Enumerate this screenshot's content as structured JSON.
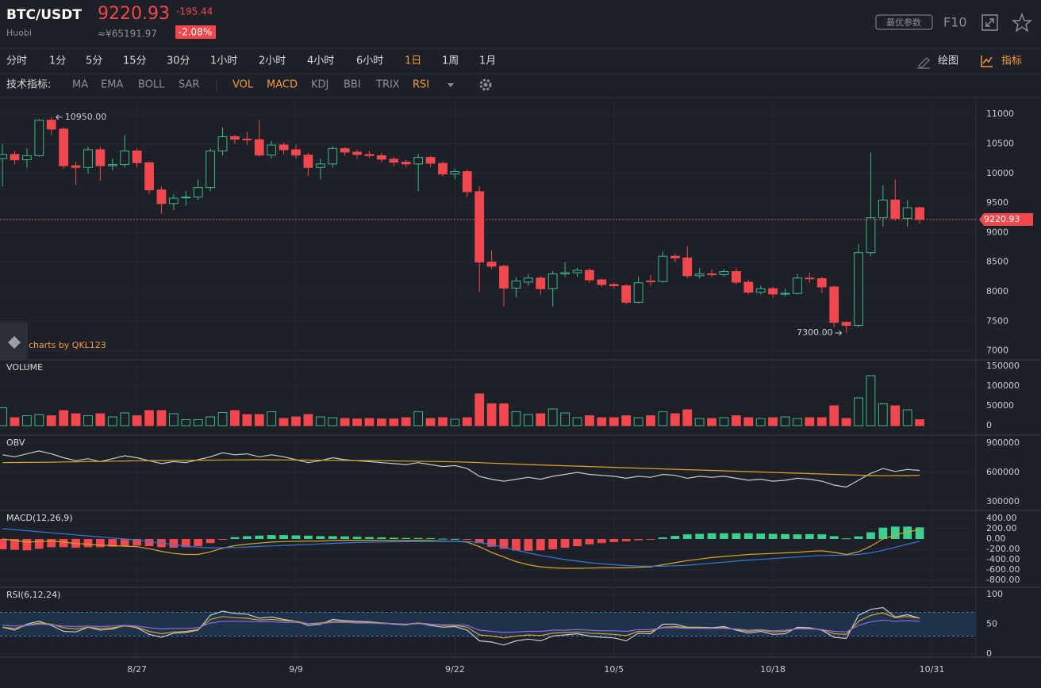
{
  "header": {
    "symbol": "BTC/USDT",
    "exchange": "Huobi",
    "price": "9220.93",
    "change": "-195.44",
    "price_cny": "≈¥65191.97",
    "change_pct": "-2.08%",
    "params_button": "最优参数",
    "f10": "F10"
  },
  "periods": [
    "分时",
    "1分",
    "5分",
    "15分",
    "30分",
    "1小时",
    "2小时",
    "4小时",
    "6小时",
    "1日",
    "1周",
    "1月"
  ],
  "active_period": 9,
  "tools": [
    "绘图",
    "指标"
  ],
  "indicators": {
    "label": "技术指标:",
    "overlays": [
      "MA",
      "EMA",
      "BOLL",
      "SAR"
    ],
    "subcharts": [
      "VOL",
      "MACD",
      "KDJ",
      "BBI",
      "TRIX",
      "RSI"
    ],
    "active_subcharts": [
      0,
      1,
      5
    ]
  },
  "watermark": "charts by QKL123",
  "chart_data": [
    {
      "type": "candlestick",
      "up_color": "#3bb78a",
      "down_color": "#f0484e",
      "open": [
        10250,
        10320,
        10230,
        10300,
        10900,
        10750,
        10130,
        10100,
        10400,
        10130,
        10150,
        10380,
        10180,
        9720,
        9490,
        9590,
        9600,
        9760,
        10380,
        10620,
        10580,
        10570,
        10310,
        10480,
        10400,
        10310,
        10100,
        10160,
        10420,
        10360,
        10320,
        10300,
        10240,
        10190,
        10160,
        10270,
        10170,
        9990,
        10030,
        9690,
        8500,
        8430,
        8060,
        8160,
        8230,
        8050,
        8300,
        8320,
        8360,
        8200,
        8120,
        8100,
        7820,
        8180,
        8170,
        8600,
        8570,
        8270,
        8300,
        8290,
        8340,
        8160,
        7990,
        8050,
        7960,
        7970,
        8230,
        8220,
        8080,
        7480,
        7430,
        8660,
        9250,
        9550,
        9240,
        9420
      ],
      "high": [
        10500,
        10380,
        10420,
        10920,
        10950,
        10780,
        10200,
        10450,
        10450,
        10250,
        10650,
        10420,
        10200,
        9780,
        9650,
        9700,
        9900,
        10420,
        10780,
        10650,
        10700,
        10900,
        10550,
        10520,
        10480,
        10350,
        10250,
        10460,
        10440,
        10400,
        10380,
        10350,
        10280,
        10230,
        10330,
        10300,
        10200,
        10080,
        10060,
        9780,
        8700,
        8450,
        8250,
        8300,
        8260,
        8350,
        8500,
        8400,
        8400,
        8220,
        8150,
        8120,
        8250,
        8280,
        8680,
        8650,
        8770,
        8400,
        8370,
        8380,
        8400,
        8200,
        8100,
        8080,
        8050,
        8300,
        8320,
        8250,
        8100,
        7500,
        8800,
        10350,
        9800,
        9900,
        9550,
        9440
      ],
      "low": [
        9780,
        10150,
        10100,
        10280,
        10650,
        10080,
        9800,
        10000,
        9880,
        10050,
        10100,
        10100,
        9650,
        9320,
        9380,
        9450,
        9550,
        9700,
        10300,
        10500,
        10480,
        10280,
        10250,
        10320,
        10250,
        9950,
        9900,
        10100,
        10300,
        10250,
        10260,
        10180,
        10120,
        10100,
        9700,
        10100,
        9950,
        9900,
        9600,
        8000,
        8380,
        7750,
        7900,
        8100,
        7950,
        7750,
        8250,
        8250,
        8150,
        8080,
        8050,
        7780,
        7800,
        8100,
        8150,
        8500,
        8230,
        8220,
        8250,
        8250,
        8120,
        7950,
        7950,
        7900,
        7920,
        7950,
        8150,
        7980,
        7400,
        7300,
        7400,
        8600,
        9100,
        9200,
        9100,
        9150
      ],
      "close": [
        10320,
        10230,
        10300,
        10900,
        10750,
        10130,
        10100,
        10400,
        10130,
        10150,
        10380,
        10180,
        9720,
        9490,
        9580,
        9600,
        9760,
        10380,
        10620,
        10580,
        10570,
        10310,
        10480,
        10400,
        10310,
        10100,
        10160,
        10420,
        10360,
        10320,
        10300,
        10240,
        10190,
        10160,
        10270,
        10170,
        9990,
        10030,
        9690,
        8500,
        8430,
        8060,
        8180,
        8230,
        8050,
        8300,
        8320,
        8360,
        8200,
        8120,
        8100,
        7820,
        8150,
        8170,
        8600,
        8570,
        8270,
        8300,
        8290,
        8340,
        8160,
        7990,
        8050,
        7960,
        7970,
        8230,
        8220,
        8080,
        7480,
        7430,
        8660,
        9250,
        9550,
        9240,
        9420,
        9220.93
      ],
      "last_price": 9220.93,
      "annotations": [
        {
          "x": 4,
          "value": 10950,
          "label": "10950.00"
        },
        {
          "x": 69,
          "value": 7300,
          "label": "7300.00"
        }
      ],
      "ylim": [
        6860,
        11230
      ],
      "yticks": [
        7000,
        7500,
        8000,
        8500,
        9000,
        9500,
        10000,
        10500,
        11000
      ],
      "xlim": [
        -0.2,
        79.6
      ],
      "xticks": [
        {
          "value": 11,
          "label": "8/27"
        },
        {
          "value": 24,
          "label": "9/9"
        },
        {
          "value": 37,
          "label": "9/22"
        },
        {
          "value": 50,
          "label": "10/5"
        },
        {
          "value": 63,
          "label": "10/18"
        },
        {
          "value": 76,
          "label": "10/31"
        }
      ]
    },
    {
      "type": "bar",
      "title": "VOLUME",
      "values": [
        45000,
        20000,
        25000,
        28000,
        25000,
        38000,
        30000,
        25000,
        30000,
        22000,
        32000,
        25000,
        38000,
        38000,
        30000,
        15000,
        15000,
        22000,
        33000,
        38000,
        28000,
        28000,
        35000,
        18000,
        22000,
        28000,
        22000,
        20000,
        18000,
        17000,
        18000,
        17000,
        17000,
        20000,
        35000,
        18000,
        20000,
        16000,
        20000,
        80000,
        55000,
        55000,
        35000,
        28000,
        30000,
        42000,
        32000,
        20000,
        25000,
        20000,
        20000,
        25000,
        20000,
        25000,
        35000,
        30000,
        40000,
        18000,
        18000,
        20000,
        25000,
        20000,
        18000,
        20000,
        22000,
        18000,
        20000,
        20000,
        50000,
        18000,
        70000,
        126000,
        55000,
        50000,
        40000,
        15000
      ],
      "ylim": [
        -22000,
        164000
      ],
      "yticks": [
        0,
        50000,
        100000,
        150000
      ]
    },
    {
      "type": "line",
      "title": "OBV",
      "series": [
        {
          "color": "#c8c8c8",
          "values": [
            780000,
            760000,
            790000,
            820000,
            790000,
            750000,
            720000,
            740000,
            710000,
            740000,
            770000,
            750000,
            720000,
            690000,
            710000,
            700000,
            730000,
            760000,
            800000,
            780000,
            790000,
            760000,
            780000,
            760000,
            730000,
            700000,
            720000,
            750000,
            730000,
            720000,
            710000,
            700000,
            690000,
            680000,
            700000,
            680000,
            660000,
            670000,
            640000,
            560000,
            530000,
            510000,
            530000,
            550000,
            530000,
            560000,
            580000,
            600000,
            580000,
            570000,
            560000,
            540000,
            560000,
            550000,
            580000,
            570000,
            540000,
            560000,
            550000,
            560000,
            540000,
            520000,
            530000,
            510000,
            520000,
            540000,
            530000,
            510000,
            470000,
            450000,
            520000,
            590000,
            640000,
            610000,
            630000,
            620000
          ]
        },
        {
          "color": "#d7a725",
          "values": [
            700000,
            701000,
            702000,
            703000,
            705000,
            707000,
            709000,
            711000,
            713000,
            715000,
            717000,
            719000,
            721000,
            722000,
            723000,
            724000,
            725000,
            726000,
            727000,
            728000,
            729000,
            730000,
            729000,
            728000,
            727000,
            726000,
            725000,
            724000,
            723000,
            722000,
            721000,
            720000,
            718000,
            716000,
            714000,
            712000,
            710000,
            708000,
            705000,
            700000,
            695000,
            690000,
            685000,
            680000,
            676000,
            672000,
            668000,
            664000,
            660000,
            656000,
            652000,
            648000,
            644000,
            640000,
            636000,
            632000,
            628000,
            624000,
            620000,
            616000,
            612000,
            608000,
            604000,
            600000,
            596000,
            592000,
            588000,
            584000,
            580000,
            576000,
            572000,
            568000,
            566000,
            566000,
            568000,
            570000
          ]
        }
      ],
      "ylim": [
        219000,
        973000
      ],
      "yticks": [
        300000,
        600000,
        900000
      ]
    },
    {
      "type": "macd",
      "title": "MACD(12,26,9)",
      "up_color": "#3bd08f",
      "down_color": "#f0484e",
      "histogram": [
        -200,
        -210,
        -220,
        -190,
        -160,
        -160,
        -170,
        -160,
        -160,
        -150,
        -140,
        -130,
        -140,
        -160,
        -170,
        -160,
        -140,
        -80,
        -10,
        35,
        55,
        65,
        75,
        75,
        70,
        65,
        55,
        55,
        50,
        43,
        37,
        30,
        25,
        19,
        20,
        16,
        7,
        2,
        -10,
        -80,
        -150,
        -190,
        -225,
        -230,
        -220,
        -200,
        -170,
        -140,
        -105,
        -80,
        -60,
        -45,
        -25,
        -10,
        30,
        60,
        90,
        100,
        110,
        110,
        110,
        110,
        105,
        100,
        95,
        90,
        95,
        90,
        55,
        12,
        50,
        130,
        220,
        240,
        240,
        225
      ],
      "series": [
        {
          "color": "#d7a725",
          "values": [
            0,
            -30,
            -60,
            -50,
            -40,
            -60,
            -90,
            -100,
            -120,
            -130,
            -140,
            -150,
            -190,
            -240,
            -280,
            -300,
            -300,
            -250,
            -180,
            -130,
            -100,
            -80,
            -60,
            -50,
            -45,
            -40,
            -40,
            -30,
            -25,
            -25,
            -25,
            -28,
            -30,
            -33,
            -30,
            -32,
            -40,
            -45,
            -60,
            -150,
            -260,
            -350,
            -440,
            -500,
            -540,
            -560,
            -570,
            -570,
            -565,
            -560,
            -560,
            -560,
            -550,
            -540,
            -500,
            -460,
            -420,
            -390,
            -360,
            -340,
            -320,
            -300,
            -290,
            -280,
            -270,
            -260,
            -240,
            -230,
            -260,
            -300,
            -250,
            -140,
            0,
            80,
            140,
            180
          ]
        },
        {
          "color": "#2f7ad9",
          "values": [
            200,
            180,
            160,
            140,
            120,
            100,
            80,
            60,
            40,
            20,
            0,
            -20,
            -50,
            -80,
            -110,
            -140,
            -160,
            -170,
            -170,
            -165,
            -155,
            -145,
            -135,
            -125,
            -115,
            -105,
            -95,
            -85,
            -75,
            -68,
            -62,
            -58,
            -55,
            -52,
            -50,
            -48,
            -47,
            -47,
            -50,
            -70,
            -110,
            -160,
            -215,
            -270,
            -320,
            -360,
            -400,
            -430,
            -460,
            -480,
            -500,
            -515,
            -525,
            -530,
            -530,
            -520,
            -510,
            -490,
            -470,
            -450,
            -430,
            -410,
            -395,
            -380,
            -365,
            -350,
            -335,
            -320,
            -315,
            -312,
            -300,
            -270,
            -220,
            -160,
            -100,
            -45
          ]
        }
      ],
      "ylim": [
        -923,
        538
      ],
      "yticks": [
        {
          "value": 400,
          "label": "400.00"
        },
        {
          "value": 200,
          "label": "200.00"
        },
        {
          "value": 0,
          "label": "0.00"
        },
        {
          "value": -200,
          "label": "-200.00"
        },
        {
          "value": -400,
          "label": "-400.00"
        },
        {
          "value": -600,
          "label": "-600.00"
        },
        {
          "value": -800,
          "label": "-800.00"
        }
      ]
    },
    {
      "type": "line",
      "title": "RSI(6,12,24)",
      "band": [
        30,
        70
      ],
      "series": [
        {
          "color": "#c8c8c8",
          "values": [
            45,
            40,
            50,
            55,
            48,
            38,
            37,
            45,
            40,
            42,
            48,
            44,
            33,
            28,
            35,
            36,
            40,
            65,
            72,
            68,
            67,
            60,
            62,
            58,
            55,
            48,
            50,
            58,
            56,
            55,
            54,
            52,
            50,
            49,
            52,
            48,
            45,
            46,
            40,
            22,
            20,
            15,
            22,
            25,
            22,
            30,
            32,
            34,
            30,
            28,
            27,
            22,
            35,
            34,
            50,
            50,
            45,
            45,
            44,
            46,
            40,
            35,
            38,
            33,
            34,
            45,
            44,
            40,
            28,
            26,
            65,
            75,
            78,
            62,
            66,
            60
          ]
        },
        {
          "color": "#d7a725",
          "values": [
            45,
            43,
            48,
            52,
            50,
            44,
            42,
            45,
            43,
            44,
            47,
            45,
            38,
            34,
            37,
            38,
            41,
            58,
            63,
            61,
            60,
            57,
            58,
            56,
            55,
            51,
            52,
            55,
            54,
            53,
            53,
            52,
            51,
            50,
            52,
            50,
            48,
            48,
            45,
            32,
            30,
            27,
            30,
            32,
            31,
            35,
            36,
            37,
            35,
            34,
            33,
            31,
            38,
            38,
            45,
            46,
            44,
            44,
            43,
            44,
            41,
            38,
            40,
            37,
            38,
            43,
            43,
            41,
            34,
            33,
            55,
            65,
            69,
            61,
            63,
            60
          ]
        },
        {
          "color": "#8f6ae0",
          "values": [
            48,
            47,
            48,
            50,
            49,
            47,
            46,
            47,
            46,
            47,
            48,
            47,
            44,
            42,
            43,
            43,
            44,
            52,
            55,
            55,
            55,
            54,
            54,
            53,
            53,
            51,
            51,
            53,
            53,
            52,
            52,
            51,
            51,
            50,
            51,
            50,
            49,
            49,
            48,
            40,
            38,
            36,
            37,
            38,
            38,
            40,
            40,
            41,
            40,
            39,
            39,
            38,
            41,
            41,
            44,
            44,
            43,
            43,
            43,
            43,
            42,
            40,
            41,
            39,
            40,
            42,
            42,
            41,
            38,
            37,
            48,
            54,
            57,
            55,
            56,
            55
          ]
        }
      ],
      "ylim": [
        -4,
        110.7
      ],
      "yticks": [
        0,
        50,
        100
      ]
    }
  ]
}
